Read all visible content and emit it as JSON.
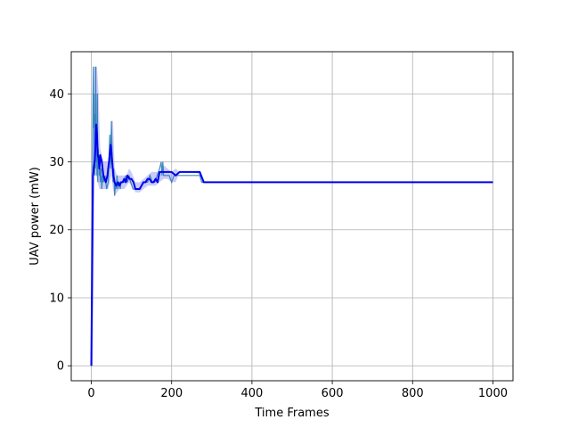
{
  "chart_data": {
    "type": "line",
    "title": "",
    "xlabel": "Time Frames",
    "ylabel": "UAV power (mW)",
    "xlim": [
      -50,
      1050
    ],
    "ylim": [
      -2.2,
      46.2
    ],
    "xticks": [
      0,
      200,
      400,
      600,
      800,
      1000
    ],
    "yticks": [
      0,
      10,
      20,
      30,
      40
    ],
    "grid": true,
    "legend": "none",
    "colors": {
      "mean_line": "#0000ee",
      "band": "#8c8cf0",
      "samples": "#1f77b4",
      "grid": "#b0b0b0",
      "axis": "#000000"
    },
    "series": [
      {
        "role": "mean",
        "x": [
          0,
          2,
          4,
          6,
          8,
          10,
          12,
          14,
          16,
          18,
          20,
          22,
          24,
          26,
          28,
          30,
          33,
          36,
          40,
          44,
          48,
          50,
          52,
          55,
          58,
          62,
          66,
          70,
          74,
          78,
          82,
          86,
          90,
          95,
          100,
          105,
          110,
          115,
          120,
          125,
          130,
          135,
          140,
          145,
          150,
          155,
          160,
          165,
          170,
          175,
          180,
          190,
          200,
          210,
          220,
          230,
          240,
          250,
          260,
          270,
          280,
          290,
          300,
          400,
          500,
          600,
          700,
          800,
          900,
          1000
        ],
        "y": [
          0,
          14,
          28,
          29,
          30,
          32,
          35.5,
          34,
          31,
          30.5,
          29,
          31,
          30.5,
          30,
          29,
          28,
          27.5,
          27,
          28,
          30,
          32.5,
          31.5,
          30,
          28,
          27,
          26.5,
          27,
          26.5,
          27,
          27,
          27.5,
          27,
          28,
          27.5,
          27.5,
          27,
          26,
          26,
          26,
          26.5,
          27,
          27,
          27.5,
          27.5,
          27,
          27,
          27.5,
          27,
          28.5,
          28.5,
          28.5,
          28.5,
          28.5,
          28,
          28.5,
          28.5,
          28.5,
          28.5,
          28.5,
          28.5,
          27,
          27,
          27,
          27,
          27,
          27,
          27,
          27,
          27,
          27
        ]
      },
      {
        "role": "band-upper",
        "x": [
          0,
          4,
          6,
          10,
          14,
          18,
          22,
          26,
          30,
          36,
          42,
          46,
          50,
          54,
          58,
          64,
          70,
          76,
          82,
          88,
          94,
          100,
          110,
          120,
          130,
          140,
          150,
          160,
          170,
          180,
          190,
          200,
          210,
          220,
          230,
          240,
          250,
          260,
          270,
          280,
          1000
        ],
        "y": [
          0,
          33,
          44,
          44,
          44,
          40,
          32,
          31,
          30,
          30,
          30,
          31,
          36,
          36,
          29,
          28,
          28,
          28,
          28,
          28,
          29,
          28.5,
          27,
          27,
          27.5,
          28,
          28.5,
          28.5,
          28.5,
          29.5,
          29,
          28.5,
          29,
          28.5,
          28.5,
          28.5,
          28.5,
          28.5,
          28.5,
          27,
          27
        ]
      },
      {
        "role": "band-lower",
        "x": [
          0,
          4,
          8,
          12,
          16,
          20,
          26,
          30,
          36,
          42,
          46,
          50,
          54,
          58,
          64,
          70,
          76,
          82,
          88,
          94,
          100,
          110,
          120,
          130,
          140,
          150,
          160,
          170,
          180,
          190,
          200,
          210,
          220,
          230,
          240,
          250,
          260,
          270,
          280,
          1000
        ],
        "y": [
          0,
          0,
          28,
          28,
          27,
          26,
          26,
          26,
          26,
          26,
          27,
          28,
          26,
          25,
          25.5,
          26,
          26,
          26,
          26.5,
          27,
          26.5,
          25.5,
          25.5,
          26,
          26.5,
          26.5,
          26.5,
          27,
          27.5,
          27.5,
          27,
          27,
          28.5,
          28.5,
          28.5,
          28.5,
          28.5,
          28,
          27,
          27
        ]
      },
      {
        "role": "samples",
        "x": [
          2,
          3,
          4,
          5,
          6,
          7,
          8,
          9,
          10,
          11,
          12,
          13,
          14,
          15,
          16,
          17,
          18,
          19,
          20,
          21,
          22,
          24,
          26,
          28,
          30,
          34,
          38,
          42,
          46,
          48,
          50,
          52,
          54,
          56,
          58,
          60,
          62,
          64,
          66,
          68,
          70,
          72,
          74,
          78,
          82,
          86,
          90,
          94,
          98,
          104,
          110,
          116,
          122,
          128,
          134,
          140,
          146,
          152,
          158,
          164,
          170,
          174,
          176,
          178,
          180,
          184,
          188,
          194,
          200,
          206,
          212,
          218,
          224,
          230,
          240,
          250,
          260,
          270,
          275,
          280,
          1000
        ],
        "y": [
          10,
          30,
          38,
          44,
          35,
          40,
          28,
          37,
          29,
          44,
          30,
          33,
          28,
          40,
          27,
          32,
          29,
          31,
          28,
          30,
          27,
          29,
          26,
          28,
          27,
          28,
          26,
          27,
          34,
          29,
          36,
          30,
          27,
          29,
          25,
          27,
          26,
          28,
          26,
          27,
          27,
          26,
          27,
          27,
          27,
          28,
          27,
          28,
          27,
          26,
          26,
          26,
          26,
          27,
          27,
          27,
          28,
          27,
          27,
          28,
          29,
          30,
          28,
          30,
          28,
          28,
          28,
          28,
          27,
          28,
          28,
          28,
          28,
          28,
          28,
          28,
          28,
          28,
          27,
          27,
          27
        ]
      }
    ]
  }
}
